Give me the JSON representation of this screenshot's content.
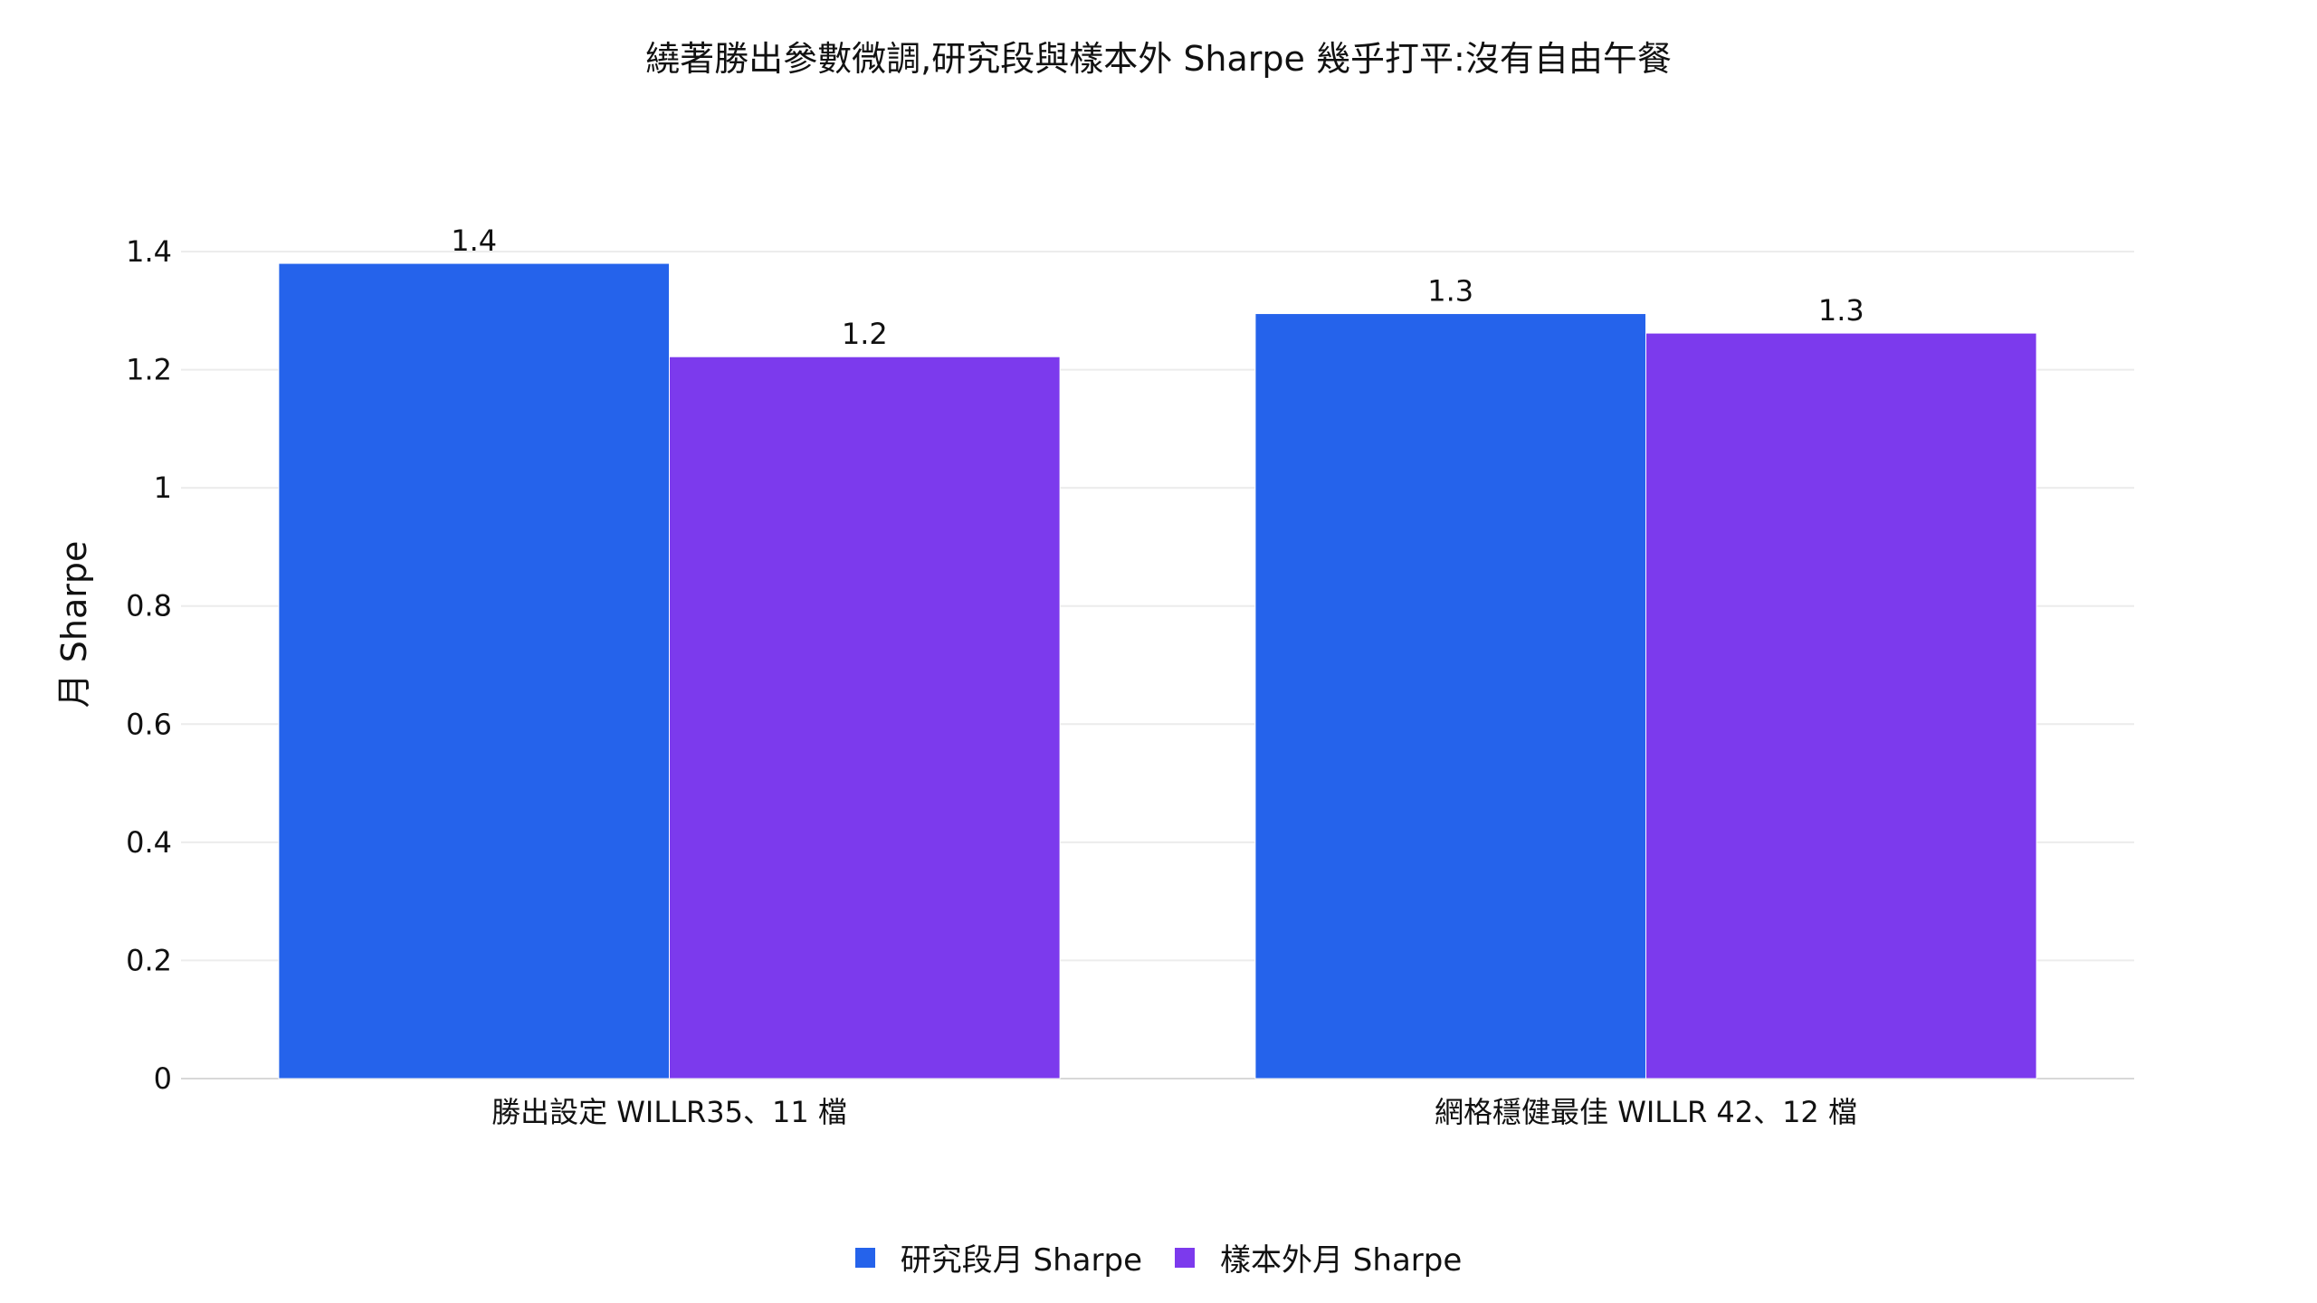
{
  "chart_data": {
    "type": "bar",
    "title": "繞著勝出參數微調,研究段與樣本外 Sharpe 幾乎打平:沒有自由午餐",
    "xlabel": "",
    "ylabel": "月 Sharpe",
    "ylim": [
      0,
      1.4
    ],
    "yticks": [
      0,
      0.2,
      0.4,
      0.6,
      0.8,
      1,
      1.2,
      1.4
    ],
    "ytick_labels": [
      "0",
      "0.2",
      "0.4",
      "0.6",
      "0.8",
      "1",
      "1.2",
      "1.4"
    ],
    "grid": true,
    "legend_position": "bottom-center",
    "categories": [
      "勝出設定 WILLR35、11 檔",
      "網格穩健最佳 WILLR 42、12 檔"
    ],
    "series": [
      {
        "name": "研究段月 Sharpe",
        "color": "#2563eb",
        "values": [
          1.38,
          1.295
        ],
        "labels": [
          "1.4",
          "1.3"
        ]
      },
      {
        "name": "樣本外月 Sharpe",
        "color": "#7c3aed",
        "values": [
          1.222,
          1.262
        ],
        "labels": [
          "1.2",
          "1.3"
        ]
      }
    ]
  }
}
